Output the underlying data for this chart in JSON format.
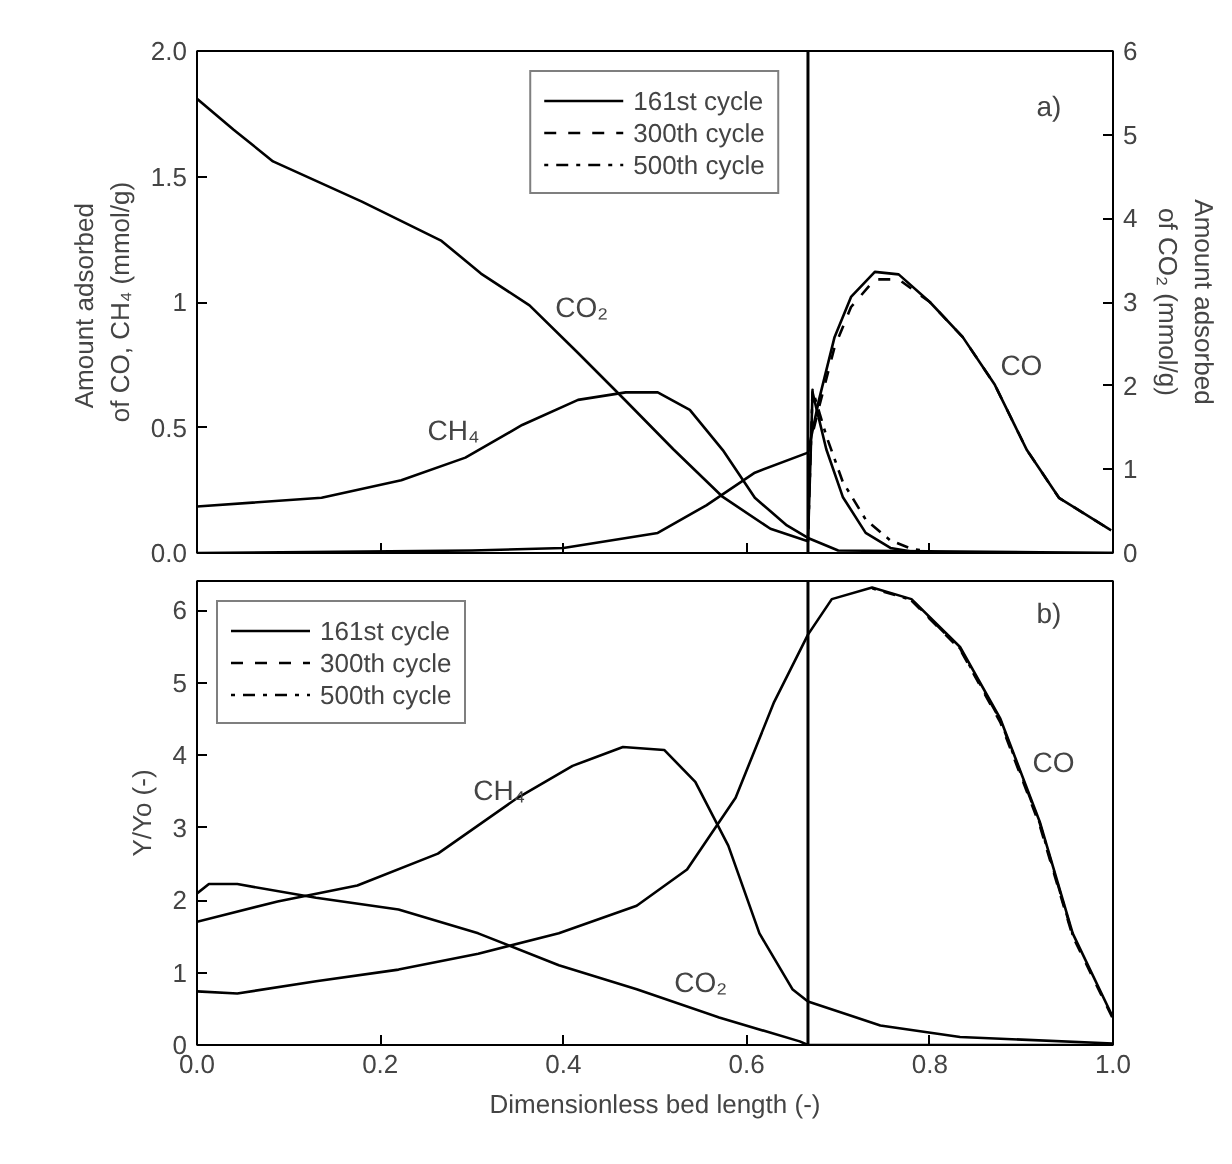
{
  "chart_data": [
    {
      "type": "line",
      "ylabel": "Amount  adsorbed of CO, CH₄ (mmol/g)",
      "y2label": "Amount adsorbed of CO₂ (mmol/g)",
      "xlim": [
        0,
        1
      ],
      "ylim": [
        0,
        2
      ],
      "yticks": [
        {
          "value": 0,
          "label": "0.0"
        },
        0.5,
        1,
        1.5,
        {
          "value": 2,
          "label": "2.0"
        }
      ],
      "y2lim": [
        0,
        6
      ],
      "y2ticks": [
        0,
        1,
        2,
        3,
        4,
        5,
        6
      ],
      "tick_labels": "y",
      "legend": "top",
      "grid": false,
      "ref_lines": [
        {
          "axis": "x",
          "value": 0.667,
          "label": null,
          "color": "#000000"
        }
      ],
      "annotations": [
        "CO₂",
        "CH₄",
        "CO",
        "a)"
      ],
      "series": [
        {
          "name": "161st cycle",
          "color": "#000000",
          "line_style": "solid",
          "x": [
            0,
            0.136,
            0.223,
            0.293,
            0.355,
            0.416,
            0.468,
            0.503,
            0.538,
            0.574,
            0.609,
            0.644,
            0.667,
            0.7,
            1.0
          ],
          "values": [
            0.185,
            0.22,
            0.29,
            0.38,
            0.51,
            0.61,
            0.64,
            0.64,
            0.57,
            0.41,
            0.22,
            0.11,
            0.06,
            0.01,
            0
          ]
        },
        {
          "color": "#000000",
          "line_style": "solid",
          "x": [
            0,
            0.3,
            0.4,
            0.503,
            0.556,
            0.609,
            0.667,
            0.679,
            0.696,
            0.714,
            0.74,
            0.766,
            0.8,
            0.836,
            0.871,
            0.906,
            0.941,
            0.998
          ],
          "values": [
            0,
            0.01,
            0.02,
            0.08,
            0.19,
            0.32,
            0.4,
            0.61,
            0.86,
            1.02,
            1.12,
            1.11,
            1.0,
            0.86,
            0.67,
            0.41,
            0.22,
            0.09
          ]
        },
        {
          "color": "#000000",
          "line_style": "solid",
          "axis": "y2",
          "x": [
            0,
            0.04,
            0.083,
            0.18,
            0.267,
            0.31,
            0.363,
            0.416,
            0.468,
            0.52,
            0.574,
            0.626,
            0.667,
            0.672,
            0.687,
            0.705,
            0.73,
            0.757,
            0.79,
            1.0
          ],
          "values": [
            5.43,
            5.06,
            4.68,
            4.2,
            3.73,
            3.34,
            2.96,
            2.39,
            1.82,
            1.24,
            0.67,
            0.29,
            0.14,
            1.92,
            1.24,
            0.67,
            0.24,
            0.06,
            0,
            0
          ]
        },
        {
          "name": "300th cycle",
          "color": "#000000",
          "line_style": "dashed",
          "x": [
            0.667,
            0.679,
            0.696,
            0.714,
            0.74,
            0.766,
            0.8,
            0.836,
            0.871,
            0.906,
            0.941,
            0.998
          ],
          "values": [
            0.4,
            0.58,
            0.82,
            0.98,
            1.09,
            1.09,
            1.0,
            0.86,
            0.67,
            0.41,
            0.22,
            0.09
          ]
        },
        {
          "name": "500th cycle",
          "color": "#000000",
          "line_style": "dotted",
          "axis": "y2",
          "x": [
            0.667,
            0.672,
            0.687,
            0.705,
            0.73,
            0.757,
            0.78,
            0.81
          ],
          "values": [
            0.14,
            1.95,
            1.4,
            0.85,
            0.4,
            0.15,
            0.05,
            0
          ]
        }
      ]
    },
    {
      "type": "line",
      "xlabel": "Dimensionless bed length (-)",
      "ylabel": "Y/Yo (-)",
      "xlim": [
        0,
        1
      ],
      "xticks": [
        {
          "value": 0,
          "label": "0.0"
        },
        0.2,
        0.4,
        0.6,
        0.8,
        {
          "value": 1,
          "label": "1.0"
        }
      ],
      "ylim": [
        0,
        6.4
      ],
      "yticks": [
        0,
        1,
        2,
        3,
        4,
        5,
        6
      ],
      "legend": "top left",
      "grid": false,
      "ref_lines": [
        {
          "axis": "x",
          "value": 0.667,
          "label": null,
          "color": "#000000"
        }
      ],
      "annotations": [
        "CH₄",
        "CO₂",
        "CO",
        "b)"
      ],
      "series": [
        {
          "name": "161st cycle",
          "color": "#000000",
          "line_style": "solid",
          "x": [
            0,
            0.088,
            0.175,
            0.263,
            0.35,
            0.41,
            0.465,
            0.51,
            0.544,
            0.58,
            0.614,
            0.65,
            0.667,
            0.746,
            0.833,
            1.0
          ],
          "values": [
            1.7,
            1.98,
            2.2,
            2.64,
            3.41,
            3.85,
            4.11,
            4.07,
            3.63,
            2.75,
            1.54,
            0.77,
            0.6,
            0.27,
            0.11,
            0.02
          ]
        },
        {
          "color": "#000000",
          "line_style": "solid",
          "x": [
            0,
            0.013,
            0.044,
            0.13,
            0.22,
            0.307,
            0.395,
            0.48,
            0.57,
            0.658,
            0.667,
            1.0
          ],
          "values": [
            2.09,
            2.22,
            2.22,
            2.03,
            1.87,
            1.54,
            1.1,
            0.77,
            0.38,
            0.05,
            0,
            0
          ]
        },
        {
          "color": "#000000",
          "line_style": "solid",
          "x": [
            0,
            0.044,
            0.13,
            0.22,
            0.307,
            0.395,
            0.48,
            0.535,
            0.588,
            0.63,
            0.667,
            0.693,
            0.737,
            0.78,
            0.833,
            0.877,
            0.92,
            0.956,
            1.0
          ],
          "values": [
            0.74,
            0.71,
            0.88,
            1.04,
            1.26,
            1.54,
            1.92,
            2.42,
            3.41,
            4.73,
            5.66,
            6.15,
            6.31,
            6.15,
            5.49,
            4.5,
            3.08,
            1.54,
            0.38
          ]
        },
        {
          "name": "300th cycle",
          "color": "#000000",
          "line_style": "dashed",
          "x": [
            0.78,
            0.833,
            0.877,
            0.92,
            0.956,
            1.0
          ],
          "values": [
            6.13,
            5.46,
            4.45,
            3.03,
            1.5,
            0.36
          ]
        },
        {
          "name": "500th cycle",
          "color": "#000000",
          "line_style": "dotted",
          "x": [
            0.737,
            0.78,
            0.833,
            0.877,
            0.92,
            0.956
          ],
          "values": [
            6.3,
            6.14,
            5.47,
            4.48,
            3.06,
            1.52
          ]
        }
      ]
    }
  ]
}
